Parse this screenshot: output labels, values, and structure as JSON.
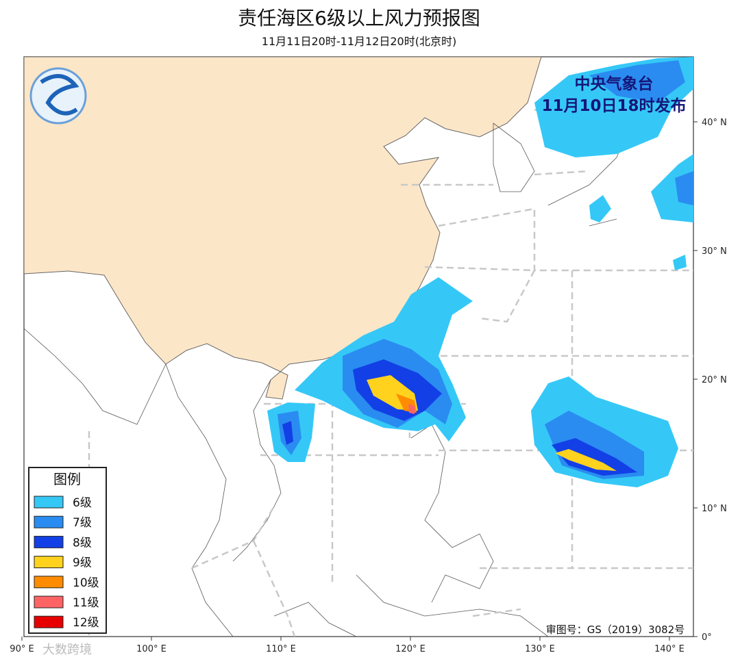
{
  "header": {
    "title": "责任海区6级以上风力预报图",
    "subtitle": "11月11日20时-11月12日20时(北京时)"
  },
  "issuer": {
    "name": "中央气象台",
    "time": "11月10日18时发布"
  },
  "legend": {
    "title": "图例",
    "items": [
      {
        "label": "6级",
        "color": "#35c8f7"
      },
      {
        "label": "7级",
        "color": "#2a8cf0"
      },
      {
        "label": "8级",
        "color": "#1240e6"
      },
      {
        "label": "9级",
        "color": "#ffd21e"
      },
      {
        "label": "10级",
        "color": "#ff8c00"
      },
      {
        "label": "11级",
        "color": "#ff6464"
      },
      {
        "label": "12级",
        "color": "#e60000"
      }
    ]
  },
  "axes": {
    "lat_labels": [
      "40° N",
      "30° N",
      "20° N",
      "10° N",
      "0°"
    ],
    "lon_labels": [
      "90° E",
      "100° E",
      "110° E",
      "120° E",
      "130° E",
      "140° E"
    ]
  },
  "footer": {
    "review_number": "审图号：GS（2019）3082号",
    "watermark": "大数跨境"
  }
}
